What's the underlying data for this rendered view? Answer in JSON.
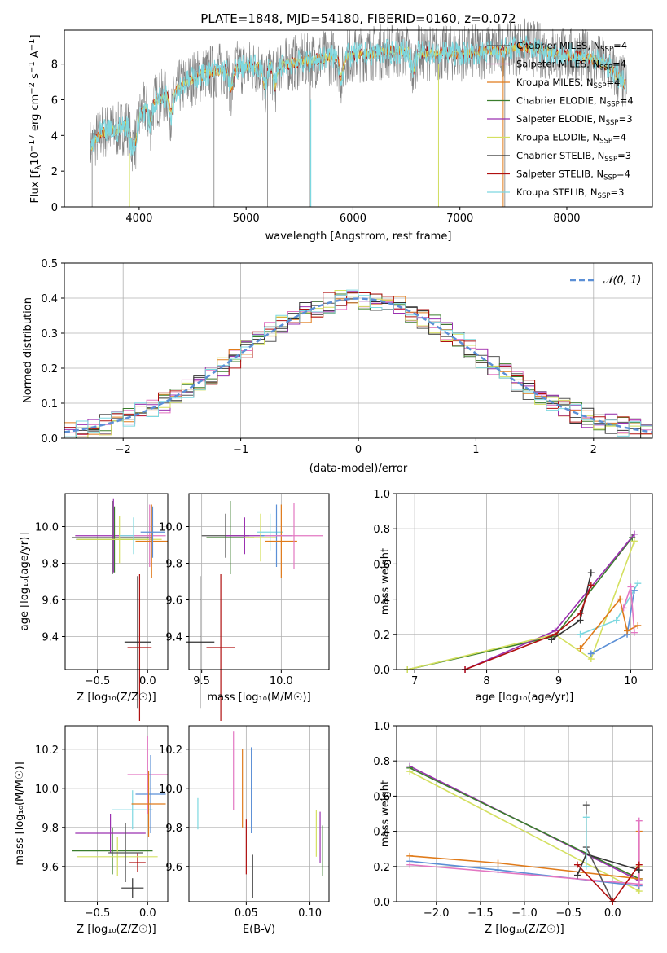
{
  "title": "PLATE=1848, MJD=54180, FIBERID=0160, z=0.072",
  "colors": {
    "chabrier_miles": "#555555",
    "salpeter_miles": "#e377c2",
    "kroupa_miles": "#e07b1a",
    "chabrier_elodie": "#3a7d2c",
    "salpeter_elodie": "#9b30b0",
    "kroupa_elodie": "#d4e060",
    "chabrier_stelib": "#333333",
    "salpeter_stelib": "#b01010",
    "kroupa_stelib": "#7dd8e0",
    "normal": "#5b8fd6",
    "data": "#808080"
  },
  "chart_data": [
    {
      "id": "spectrum",
      "type": "line",
      "xlabel": "wavelength [Angstrom, rest frame]",
      "ylabel_parts": {
        "a": "Flux [f",
        "b": "λ",
        "c": "10",
        "d": "−17",
        "e": " erg cm",
        "f": "−2",
        "g": " s",
        "h": "−1",
        "i": " A",
        "j": "−1",
        "k": "]"
      },
      "xlim": [
        3300,
        8800
      ],
      "ylim": [
        0,
        9.9
      ],
      "xticks": [
        "4000",
        "5000",
        "6000",
        "7000",
        "8000"
      ],
      "yticks": [
        "0",
        "2",
        "4",
        "6",
        "8"
      ],
      "continuum": [
        [
          3550,
          3.4
        ],
        [
          3650,
          4.2
        ],
        [
          3800,
          4.3
        ],
        [
          3950,
          4.8
        ],
        [
          4100,
          5.8
        ],
        [
          4300,
          6.4
        ],
        [
          4500,
          7.2
        ],
        [
          4700,
          7.6
        ],
        [
          4900,
          7.8
        ],
        [
          5200,
          7.9
        ],
        [
          5500,
          8.1
        ],
        [
          5800,
          8.4
        ],
        [
          6000,
          8.5
        ],
        [
          6300,
          8.7
        ],
        [
          6500,
          8.7
        ],
        [
          6800,
          8.6
        ],
        [
          7000,
          8.6
        ],
        [
          7200,
          8.7
        ],
        [
          7400,
          8.8
        ],
        [
          7600,
          9.0
        ],
        [
          7800,
          8.7
        ],
        [
          8000,
          8.5
        ],
        [
          8200,
          8.4
        ],
        [
          8400,
          7.8
        ],
        [
          8550,
          6.8
        ]
      ],
      "legend": [
        {
          "label": "Chabrier MILES, N",
          "sub": "SSP",
          "tail": "=4",
          "color_key": "chabrier_miles"
        },
        {
          "label": "Salpeter MILES, N",
          "sub": "SSP",
          "tail": "=4",
          "color_key": "salpeter_miles"
        },
        {
          "label": "Kroupa MILES, N",
          "sub": "SSP",
          "tail": "=4",
          "color_key": "kroupa_miles"
        },
        {
          "label": "Chabrier ELODIE, N",
          "sub": "SSP",
          "tail": "=4",
          "color_key": "chabrier_elodie"
        },
        {
          "label": "Salpeter ELODIE, N",
          "sub": "SSP",
          "tail": "=3",
          "color_key": "salpeter_elodie"
        },
        {
          "label": "Kroupa ELODIE, N",
          "sub": "SSP",
          "tail": "=4",
          "color_key": "kroupa_elodie"
        },
        {
          "label": "Chabrier STELIB, N",
          "sub": "SSP",
          "tail": "=3",
          "color_key": "chabrier_stelib"
        },
        {
          "label": "Salpeter STELIB, N",
          "sub": "SSP",
          "tail": "=4",
          "color_key": "salpeter_stelib"
        },
        {
          "label": "Kroupa STELIB, N",
          "sub": "SSP",
          "tail": "=3",
          "color_key": "kroupa_stelib"
        }
      ]
    },
    {
      "id": "residuals",
      "type": "line",
      "xlabel": "(data-model)/error",
      "ylabel": "Normed distribution",
      "xlim": [
        -2.5,
        2.5
      ],
      "ylim": [
        0,
        0.5
      ],
      "xticks": [
        "−2",
        "−1",
        "0",
        "1",
        "2"
      ],
      "yticks": [
        "0.0",
        "0.1",
        "0.2",
        "0.3",
        "0.4",
        "0.5"
      ],
      "legend": [
        {
          "label": "𝒩(0, 1)",
          "color_key": "normal"
        }
      ]
    },
    {
      "id": "age_vs_z",
      "type": "scatter",
      "xlabel": "Z [log₁₀(Z/Z☉)]",
      "ylabel": "age  [log₁₀(age/yr)]",
      "xlim": [
        -0.82,
        0.2
      ],
      "ylim": [
        9.22,
        10.18
      ],
      "xticks": [
        "−0.5",
        "0.0"
      ],
      "yticks": [
        "9.4",
        "9.6",
        "9.8",
        "10.0"
      ],
      "points": [
        {
          "x": -0.1,
          "y": 9.37,
          "xerr": 0.13,
          "yerr": 0.36,
          "color_key": "chabrier_stelib"
        },
        {
          "x": -0.08,
          "y": 9.34,
          "xerr": 0.12,
          "yerr": 0.4,
          "color_key": "salpeter_stelib"
        },
        {
          "x": -0.35,
          "y": 9.94,
          "xerr": 0.4,
          "yerr": 0.2,
          "color_key": "chabrier_miles"
        },
        {
          "x": -0.34,
          "y": 9.95,
          "xerr": 0.38,
          "yerr": 0.2,
          "color_key": "salpeter_elodie"
        },
        {
          "x": -0.33,
          "y": 9.93,
          "xerr": 0.38,
          "yerr": 0.18,
          "color_key": "chabrier_elodie"
        },
        {
          "x": -0.28,
          "y": 9.93,
          "xerr": 0.42,
          "yerr": 0.13,
          "color_key": "kroupa_elodie"
        },
        {
          "x": -0.14,
          "y": 9.95,
          "xerr": 0.14,
          "yerr": 0.1,
          "color_key": "kroupa_stelib"
        },
        {
          "x": 0.02,
          "y": 9.95,
          "xerr": 0.16,
          "yerr": 0.17,
          "color_key": "salpeter_miles"
        },
        {
          "x": 0.04,
          "y": 9.92,
          "xerr": 0.16,
          "yerr": 0.2,
          "color_key": "kroupa_miles"
        },
        {
          "x": 0.05,
          "y": 9.97,
          "xerr": 0.12,
          "yerr": 0.14,
          "color_key": "normal"
        }
      ]
    },
    {
      "id": "age_vs_mass",
      "type": "scatter",
      "xlabel": "mass [log₁₀(M/M☉)]",
      "ylabel": "",
      "xlim": [
        9.42,
        10.3
      ],
      "ylim": [
        9.22,
        10.18
      ],
      "xticks": [
        "9.5",
        "10.0"
      ],
      "yticks": [
        "9.4",
        "9.6",
        "9.8",
        "10.0"
      ],
      "points": [
        {
          "x": 9.49,
          "y": 9.37,
          "xerr": 0.09,
          "yerr": 0.36,
          "color_key": "chabrier_stelib"
        },
        {
          "x": 9.62,
          "y": 9.34,
          "xerr": 0.09,
          "yerr": 0.4,
          "color_key": "salpeter_stelib"
        },
        {
          "x": 9.65,
          "y": 9.95,
          "xerr": 0.15,
          "yerr": 0.12,
          "color_key": "chabrier_miles"
        },
        {
          "x": 9.68,
          "y": 9.94,
          "xerr": 0.15,
          "yerr": 0.2,
          "color_key": "chabrier_elodie"
        },
        {
          "x": 9.77,
          "y": 9.95,
          "xerr": 0.12,
          "yerr": 0.1,
          "color_key": "salpeter_elodie"
        },
        {
          "x": 9.87,
          "y": 9.94,
          "xerr": 0.1,
          "yerr": 0.13,
          "color_key": "kroupa_elodie"
        },
        {
          "x": 9.93,
          "y": 9.97,
          "xerr": 0.08,
          "yerr": 0.1,
          "color_key": "kroupa_stelib"
        },
        {
          "x": 9.97,
          "y": 9.95,
          "xerr": 0.1,
          "yerr": 0.17,
          "color_key": "normal"
        },
        {
          "x": 10.0,
          "y": 9.92,
          "xerr": 0.1,
          "yerr": 0.2,
          "color_key": "kroupa_miles"
        },
        {
          "x": 10.08,
          "y": 9.95,
          "xerr": 0.18,
          "yerr": 0.18,
          "color_key": "salpeter_miles"
        }
      ]
    },
    {
      "id": "weight_vs_age",
      "type": "line",
      "xlabel": "age  [log₁₀(age/yr)]",
      "ylabel": "mass weight",
      "xlim": [
        6.75,
        10.3
      ],
      "ylim": [
        0,
        1
      ],
      "xticks": [
        "7",
        "8",
        "9",
        "10"
      ],
      "yticks": [
        "0.0",
        "0.2",
        "0.4",
        "0.6",
        "0.8",
        "1.0"
      ],
      "series": [
        {
          "color_key": "chabrier_elodie",
          "x": [
            6.9,
            8.95,
            10.02
          ],
          "y": [
            0.0,
            0.19,
            0.75
          ]
        },
        {
          "color_key": "salpeter_elodie",
          "x": [
            7.7,
            8.95,
            10.05
          ],
          "y": [
            0.0,
            0.22,
            0.77
          ]
        },
        {
          "color_key": "kroupa_elodie",
          "x": [
            6.9,
            8.95,
            9.45,
            10.05
          ],
          "y": [
            0.0,
            0.2,
            0.06,
            0.73
          ]
        },
        {
          "color_key": "chabrier_stelib",
          "x": [
            8.9,
            9.3,
            9.45
          ],
          "y": [
            0.17,
            0.28,
            0.55
          ]
        },
        {
          "color_key": "salpeter_stelib",
          "x": [
            7.7,
            8.95,
            9.3,
            9.45
          ],
          "y": [
            0.0,
            0.2,
            0.32,
            0.48
          ]
        },
        {
          "color_key": "kroupa_stelib",
          "x": [
            9.3,
            9.8,
            10.1
          ],
          "y": [
            0.2,
            0.28,
            0.49
          ]
        },
        {
          "color_key": "normal",
          "x": [
            9.45,
            9.95,
            10.05
          ],
          "y": [
            0.09,
            0.2,
            0.45
          ]
        },
        {
          "color_key": "kroupa_miles",
          "x": [
            9.3,
            9.85,
            9.95,
            10.1
          ],
          "y": [
            0.12,
            0.4,
            0.22,
            0.25
          ]
        },
        {
          "color_key": "salpeter_miles",
          "x": [
            9.9,
            10.0,
            10.05
          ],
          "y": [
            0.35,
            0.47,
            0.21
          ]
        }
      ]
    },
    {
      "id": "mass_vs_z",
      "type": "scatter",
      "xlabel": "Z [log₁₀(Z/Z☉)]",
      "ylabel": "mass [log₁₀(M/M☉)]",
      "xlim": [
        -0.82,
        0.2
      ],
      "ylim": [
        9.42,
        10.32
      ],
      "xticks": [
        "−0.5",
        "0.0"
      ],
      "yticks": [
        "9.6",
        "9.8",
        "10.0",
        "10.2"
      ],
      "points": [
        {
          "x": -0.15,
          "y": 9.49,
          "xerr": 0.11,
          "yerr": 0.05,
          "color_key": "chabrier_stelib"
        },
        {
          "x": -0.1,
          "y": 9.62,
          "xerr": 0.08,
          "yerr": 0.05,
          "color_key": "salpeter_stelib"
        },
        {
          "x": -0.35,
          "y": 9.68,
          "xerr": 0.4,
          "yerr": 0.12,
          "color_key": "chabrier_elodie"
        },
        {
          "x": -0.3,
          "y": 9.65,
          "xerr": 0.4,
          "yerr": 0.1,
          "color_key": "kroupa_elodie"
        },
        {
          "x": -0.37,
          "y": 9.77,
          "xerr": 0.35,
          "yerr": 0.1,
          "color_key": "salpeter_elodie"
        },
        {
          "x": -0.22,
          "y": 9.67,
          "xerr": 0.17,
          "yerr": 0.15,
          "color_key": "chabrier_miles"
        },
        {
          "x": -0.15,
          "y": 9.89,
          "xerr": 0.2,
          "yerr": 0.1,
          "color_key": "kroupa_stelib"
        },
        {
          "x": 0.0,
          "y": 10.07,
          "xerr": 0.2,
          "yerr": 0.2,
          "color_key": "salpeter_miles"
        },
        {
          "x": 0.03,
          "y": 9.97,
          "xerr": 0.15,
          "yerr": 0.2,
          "color_key": "normal"
        },
        {
          "x": 0.01,
          "y": 9.92,
          "xerr": 0.17,
          "yerr": 0.17,
          "color_key": "kroupa_miles"
        }
      ]
    },
    {
      "id": "mass_vs_ebv",
      "type": "scatter",
      "xlabel": "E(B-V)",
      "ylabel": "",
      "xlim": [
        0.005,
        0.115
      ],
      "ylim": [
        9.42,
        10.32
      ],
      "xticks": [
        "0.05",
        "0.10"
      ],
      "yticks": [
        "9.6",
        "9.8",
        "10.0",
        "10.2"
      ],
      "points": [
        {
          "x": 0.012,
          "y": 9.87,
          "xerr": 0,
          "yerr": 0.08,
          "color_key": "kroupa_stelib"
        },
        {
          "x": 0.04,
          "y": 10.09,
          "xerr": 0,
          "yerr": 0.2,
          "color_key": "salpeter_miles"
        },
        {
          "x": 0.047,
          "y": 10.0,
          "xerr": 0,
          "yerr": 0.2,
          "color_key": "kroupa_miles"
        },
        {
          "x": 0.05,
          "y": 9.7,
          "xerr": 0,
          "yerr": 0.14,
          "color_key": "salpeter_stelib"
        },
        {
          "x": 0.054,
          "y": 9.99,
          "xerr": 0,
          "yerr": 0.22,
          "color_key": "normal"
        },
        {
          "x": 0.055,
          "y": 9.55,
          "xerr": 0,
          "yerr": 0.11,
          "color_key": "chabrier_stelib"
        },
        {
          "x": 0.105,
          "y": 9.77,
          "xerr": 0,
          "yerr": 0.12,
          "color_key": "kroupa_elodie"
        },
        {
          "x": 0.108,
          "y": 9.75,
          "xerr": 0,
          "yerr": 0.13,
          "color_key": "salpeter_elodie"
        },
        {
          "x": 0.11,
          "y": 9.68,
          "xerr": 0,
          "yerr": 0.13,
          "color_key": "chabrier_elodie"
        }
      ]
    },
    {
      "id": "weight_vs_z",
      "type": "line",
      "xlabel": "Z [log₁₀(Z/Z☉)]",
      "ylabel": "mass weight",
      "xlim": [
        -2.45,
        0.45
      ],
      "ylim": [
        0,
        1
      ],
      "xticks": [
        "−2.0",
        "−1.5",
        "−1.0",
        "−0.5",
        "0.0"
      ],
      "yticks": [
        "0.0",
        "0.2",
        "0.4",
        "0.6",
        "0.8",
        "1.0"
      ],
      "series": [
        {
          "color_key": "salpeter_elodie",
          "x": [
            -2.3,
            0.3
          ],
          "y": [
            0.77,
            0.12
          ]
        },
        {
          "color_key": "chabrier_elodie",
          "x": [
            -2.3,
            0.3
          ],
          "y": [
            0.76,
            0.13
          ]
        },
        {
          "color_key": "kroupa_elodie",
          "x": [
            -2.3,
            0.3,
            0.3
          ],
          "y": [
            0.74,
            0.06,
            0.2
          ]
        },
        {
          "color_key": "kroupa_miles",
          "x": [
            -2.3,
            -1.3,
            0.3,
            0.3
          ],
          "y": [
            0.26,
            0.22,
            0.13,
            0.4
          ]
        },
        {
          "color_key": "normal",
          "x": [
            -2.3,
            -1.3,
            0.3
          ],
          "y": [
            0.23,
            0.18,
            0.09
          ]
        },
        {
          "color_key": "salpeter_miles",
          "x": [
            -2.3,
            0.3,
            0.3
          ],
          "y": [
            0.21,
            0.1,
            0.46
          ]
        },
        {
          "color_key": "chabrier_stelib",
          "x": [
            -0.4,
            -0.3,
            0.3
          ],
          "y": [
            0.15,
            0.27,
            0.18
          ]
        },
        {
          "color_key": "chabrier_miles",
          "x": [
            -0.3,
            -0.3,
            0.0
          ],
          "y": [
            0.55,
            0.31,
            0.0
          ]
        },
        {
          "color_key": "salpeter_stelib",
          "x": [
            -0.4,
            0.0,
            0.3
          ],
          "y": [
            0.21,
            0.0,
            0.21
          ]
        },
        {
          "color_key": "kroupa_stelib",
          "x": [
            -0.3,
            -0.3
          ],
          "y": [
            0.48,
            0.2
          ]
        }
      ]
    }
  ]
}
